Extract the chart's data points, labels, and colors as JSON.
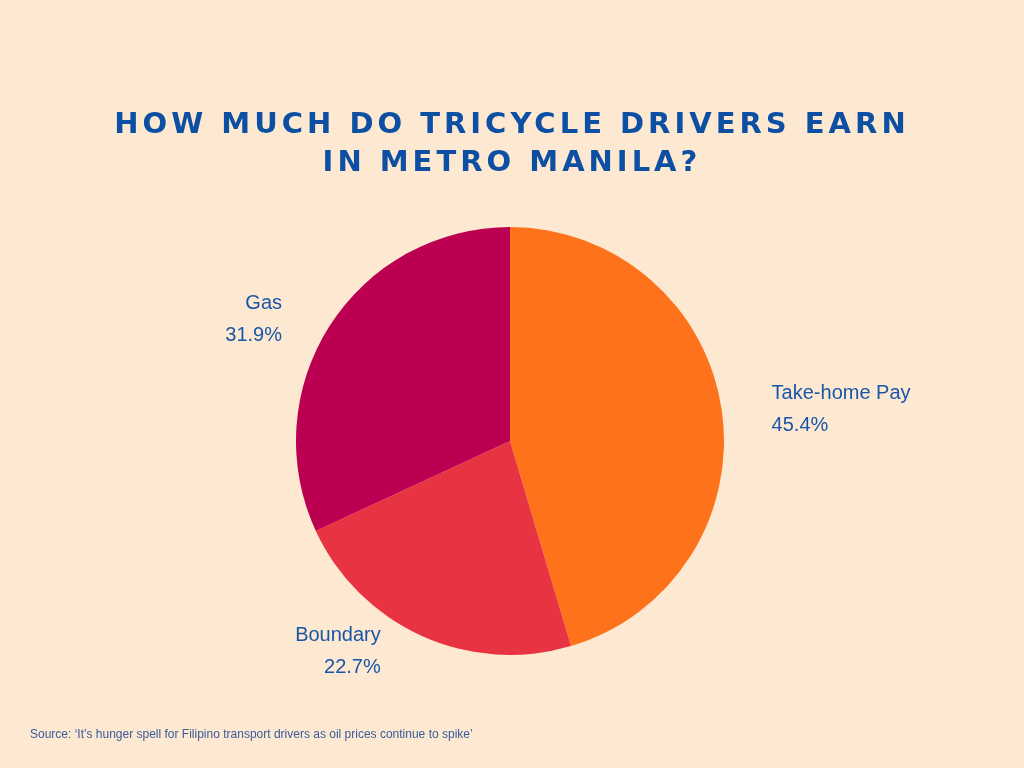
{
  "chart_data": {
    "type": "pie",
    "title": "HOW MUCH DO TRICYCLE DRIVERS EARN IN METRO MANILA?",
    "categories": [
      "Take-home Pay",
      "Boundary",
      "Gas"
    ],
    "values": [
      45.4,
      22.7,
      31.9
    ],
    "value_labels": [
      "45.4%",
      "22.7%",
      "31.9%"
    ],
    "colors": [
      "#fe721b",
      "#e83442",
      "#bb0051"
    ],
    "annotations": [
      "Source: ‘It’s hunger spell for Filipino transport drivers as oil prices continue to spike’"
    ]
  }
}
